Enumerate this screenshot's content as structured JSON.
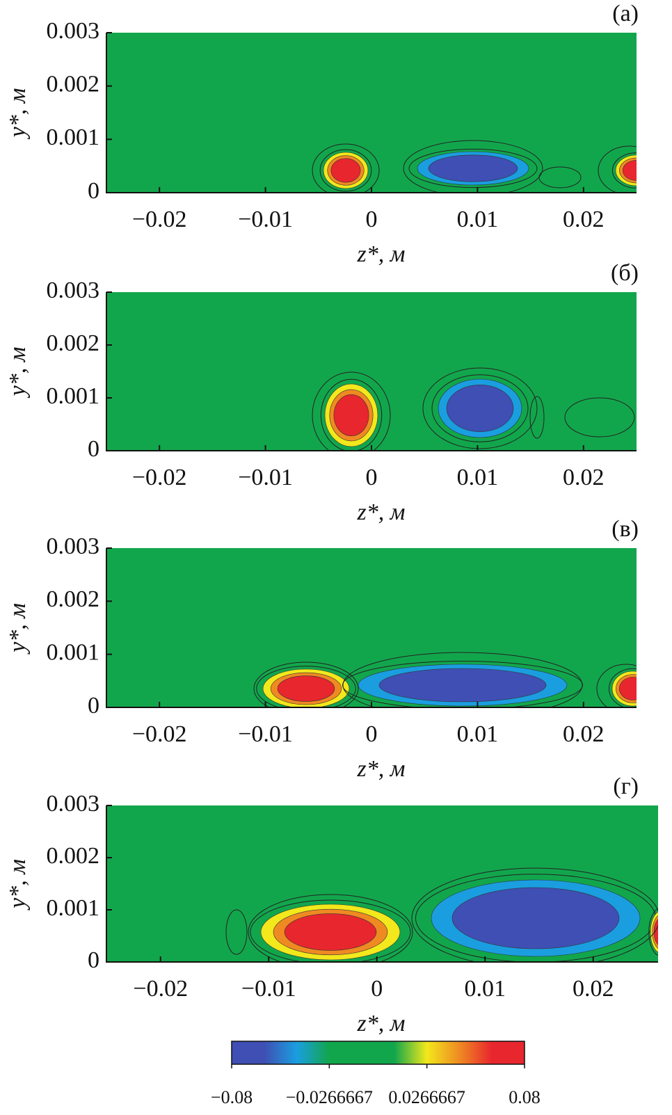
{
  "chart_data": [
    {
      "type": "contour",
      "panel_label": "(а)",
      "xlabel": "z*, м",
      "ylabel": "y*, м",
      "xlim": [
        -0.025,
        0.025
      ],
      "ylim": [
        0,
        0.003
      ],
      "xticks": [
        {
          "value": -0.02,
          "label": "−0.02"
        },
        {
          "value": -0.01,
          "label": "−0.01"
        },
        0,
        0.01,
        0.02
      ],
      "yticks": [
        0,
        0.001,
        0.002,
        0.003
      ]
    },
    {
      "type": "contour",
      "panel_label": "(б)",
      "xlabel": "z*, м",
      "ylabel": "y*, м",
      "xlim": [
        -0.025,
        0.025
      ],
      "ylim": [
        0,
        0.003
      ],
      "xticks": [
        {
          "value": -0.02,
          "label": "−0.02"
        },
        {
          "value": -0.01,
          "label": "−0.01"
        },
        0,
        0.01,
        0.02
      ],
      "yticks": [
        0,
        0.001,
        0.002,
        0.003
      ]
    },
    {
      "type": "contour",
      "panel_label": "(в)",
      "xlabel": "z*, м",
      "ylabel": "y*, м",
      "xlim": [
        -0.025,
        0.025
      ],
      "ylim": [
        0,
        0.003
      ],
      "xticks": [
        {
          "value": -0.02,
          "label": "−0.02"
        },
        {
          "value": -0.01,
          "label": "−0.01"
        },
        0,
        0.01,
        0.02
      ],
      "yticks": [
        0,
        0.001,
        0.002,
        0.003
      ]
    },
    {
      "type": "contour",
      "panel_label": "(г)",
      "xlabel": "z*, м",
      "ylabel": "y*, м",
      "xlim": [
        -0.025,
        0.026
      ],
      "ylim": [
        0,
        0.003
      ],
      "xticks": [
        {
          "value": -0.02,
          "label": "−0.02"
        },
        {
          "value": -0.01,
          "label": "−0.01"
        },
        0,
        0.01,
        0.02
      ],
      "yticks": [
        0,
        0.001,
        0.002,
        0.003
      ]
    },
    {
      "type": "colorbar",
      "xlim": [
        -0.08,
        0.08
      ],
      "colors": [
        "#3f4fb3",
        "#3f4fb3",
        "#1a9ee0",
        "#12a64c",
        "#12a64c",
        "#12a64c",
        "#f2e81c",
        "#ef8a22",
        "#e8262e",
        "#e8262e"
      ],
      "xticks": [
        {
          "value": -0.08,
          "label": "−0.08"
        },
        {
          "value": -0.0266667,
          "label": "−0.0266667"
        },
        0.0266667,
        0.08
      ]
    }
  ]
}
